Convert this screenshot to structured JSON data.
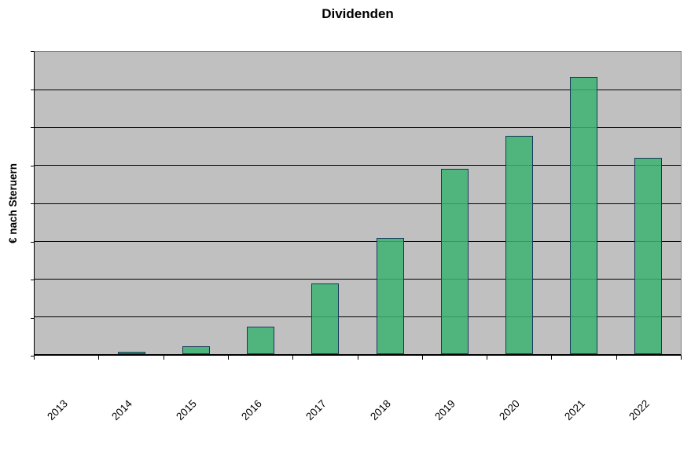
{
  "chart_data": {
    "type": "bar",
    "title": "Dividenden",
    "ylabel": "€ nach Steruern",
    "xlabel": "",
    "categories": [
      "2013",
      "2014",
      "2015",
      "2016",
      "2017",
      "2018",
      "2019",
      "2020",
      "2021",
      "2022"
    ],
    "values": [
      0,
      0.06,
      0.21,
      0.72,
      1.88,
      3.07,
      4.9,
      5.77,
      7.34,
      5.19
    ],
    "ylim": [
      0,
      8
    ],
    "y_tick_labels": "none visible; values estimated in gridline units (1 unit = one horizontal gridline interval)",
    "gridlines": "horizontal only, 7 interior black lines",
    "legend_position": "none",
    "x_tick_label_rotation_deg": 45,
    "colors": {
      "plot_background": "#C0C0C0",
      "bar_fill": "#3CB371",
      "bar_fill_opacity": 0.85,
      "bar_border": "#17365D",
      "gridline": "#000000",
      "axis_line": "#000000",
      "plot_border": "#7F7F7F",
      "text": "#000000",
      "page_background": "#FFFFFF"
    }
  }
}
